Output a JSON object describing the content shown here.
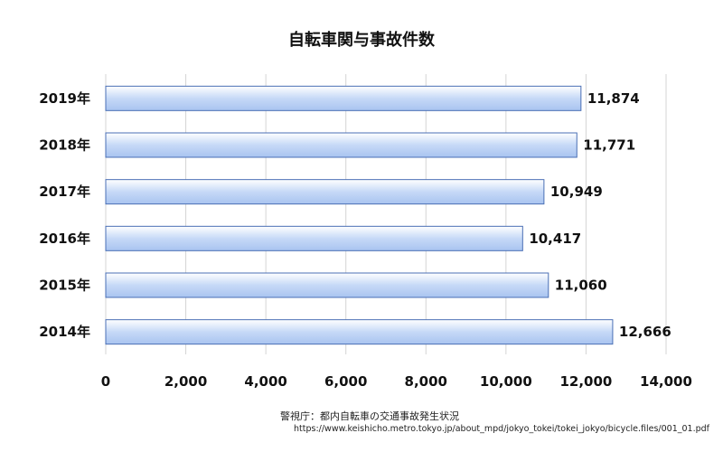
{
  "chart_data": {
    "type": "bar",
    "orientation": "horizontal",
    "title": "自転車関与事故件数",
    "categories": [
      "2019年",
      "2018年",
      "2017年",
      "2016年",
      "2015年",
      "2014年"
    ],
    "values": [
      11874,
      11771,
      10949,
      10417,
      11060,
      12666
    ],
    "value_labels": [
      "11,874",
      "11,771",
      "10,949",
      "10,417",
      "11,060",
      "12,666"
    ],
    "xlim": [
      0,
      14000
    ],
    "x_ticks": [
      0,
      2000,
      4000,
      6000,
      8000,
      10000,
      12000,
      14000
    ],
    "x_tick_labels": [
      "0",
      "2,000",
      "4,000",
      "6,000",
      "8,000",
      "10,000",
      "12,000",
      "14,000"
    ],
    "grid": true,
    "bar_color": "#c6d9f7"
  },
  "source": {
    "text": "警視庁：都内自転車の交通事故発生状況",
    "url": "https://www.keishicho.metro.tokyo.jp/about_mpd/jokyo_tokei/tokei_jokyo/bicycle.files/001_01.pdf"
  }
}
